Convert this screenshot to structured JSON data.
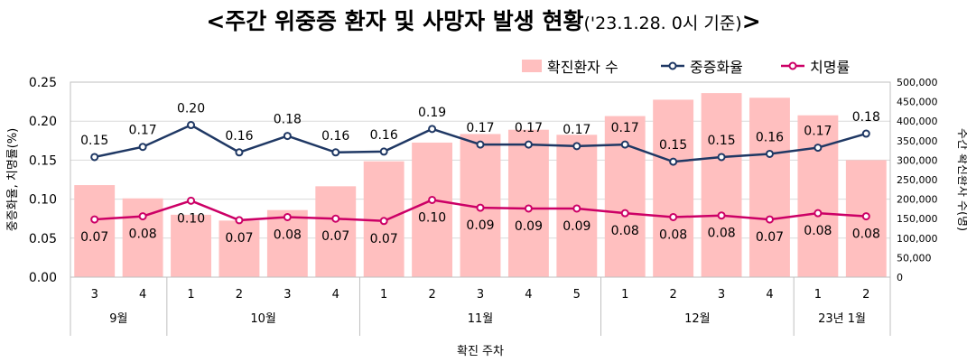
{
  "title": {
    "prefix": "<주간 위중증 환자 및 사망자 발생 현황",
    "subtitle": "('23.1.28. 0시 기준)",
    "suffix": ">"
  },
  "chart_data": {
    "type": "bar+line",
    "title": "<주간 위중증 환자 및 사망자 발생 현황('23.1.28. 0시 기준)>",
    "xlabel": "확진 주차",
    "ylabel_left": "중증화율, 치명률(%)",
    "ylabel_right": "주간 확진환자 수(명)",
    "ylim_left": [
      0,
      0.25
    ],
    "ylim_right": [
      0,
      500000
    ],
    "yticks_left": [
      "0.00",
      "0.05",
      "0.10",
      "0.15",
      "0.20",
      "0.25"
    ],
    "yticks_right": [
      "0",
      "50,000",
      "100,000",
      "150,000",
      "200,000",
      "250,000",
      "300,000",
      "350,000",
      "400,000",
      "450,000",
      "500,000"
    ],
    "weeks": [
      "3",
      "4",
      "1",
      "2",
      "3",
      "4",
      "1",
      "2",
      "3",
      "4",
      "5",
      "1",
      "2",
      "3",
      "4",
      "1",
      "2"
    ],
    "month_groups": [
      {
        "label": "9월",
        "count": 2
      },
      {
        "label": "10월",
        "count": 4
      },
      {
        "label": "11월",
        "count": 5
      },
      {
        "label": "12월",
        "count": 4
      },
      {
        "label": "23년 1월",
        "count": 2
      }
    ],
    "legend": [
      "확진환자 수",
      "중증화율",
      "치명률"
    ],
    "legend_position": "top-right",
    "grid": true,
    "series": [
      {
        "name": "확진환자 수",
        "kind": "bar",
        "axis": "right",
        "color": "#FFBFBF",
        "values": [
          236000,
          202000,
          160000,
          145000,
          172000,
          233000,
          297000,
          345000,
          367000,
          378000,
          365000,
          413000,
          455000,
          472000,
          460000,
          415000,
          300000
        ]
      },
      {
        "name": "중증화율",
        "kind": "line",
        "axis": "left",
        "color": "#1F3864",
        "values": [
          0.154,
          0.167,
          0.195,
          0.16,
          0.181,
          0.16,
          0.161,
          0.19,
          0.17,
          0.17,
          0.168,
          0.17,
          0.148,
          0.154,
          0.158,
          0.166,
          0.184
        ],
        "labels": [
          "0.15",
          "0.17",
          "0.20",
          "0.16",
          "0.18",
          "0.16",
          "0.16",
          "0.19",
          "0.17",
          "0.17",
          "0.17",
          "0.17",
          "0.15",
          "0.15",
          "0.16",
          "0.17",
          "0.18"
        ]
      },
      {
        "name": "치명률",
        "kind": "line",
        "axis": "left",
        "color": "#CC0066",
        "values": [
          0.074,
          0.078,
          0.098,
          0.073,
          0.077,
          0.075,
          0.072,
          0.099,
          0.089,
          0.088,
          0.088,
          0.082,
          0.077,
          0.079,
          0.074,
          0.082,
          0.078
        ],
        "labels": [
          "0.07",
          "0.08",
          "0.10",
          "0.07",
          "0.08",
          "0.07",
          "0.07",
          "0.10",
          "0.09",
          "0.09",
          "0.09",
          "0.08",
          "0.08",
          "0.08",
          "0.07",
          "0.08",
          "0.08"
        ]
      }
    ]
  }
}
